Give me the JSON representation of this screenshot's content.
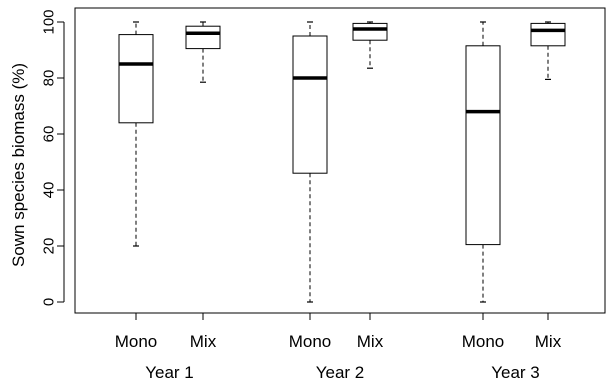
{
  "chart_data": {
    "type": "box",
    "title": "",
    "xlabel": "",
    "ylabel": "Sown species biomass (%)",
    "ylim": [
      0,
      100
    ],
    "yticks": [
      0,
      20,
      40,
      60,
      80,
      100
    ],
    "grid": false,
    "legend": "none",
    "groups": [
      {
        "label": "Year 1",
        "boxes": [
          {
            "category": "Mono",
            "min": 20,
            "q1": 64,
            "median": 85,
            "q3": 95.5,
            "max": 100
          },
          {
            "category": "Mix",
            "min": 78.5,
            "q1": 90.5,
            "median": 96,
            "q3": 98.5,
            "max": 100
          }
        ]
      },
      {
        "label": "Year 2",
        "boxes": [
          {
            "category": "Mono",
            "min": 0,
            "q1": 46,
            "median": 80,
            "q3": 95,
            "max": 100
          },
          {
            "category": "Mix",
            "min": 83.5,
            "q1": 93.5,
            "median": 97.5,
            "q3": 99.5,
            "max": 100
          }
        ]
      },
      {
        "label": "Year 3",
        "boxes": [
          {
            "category": "Mono",
            "min": 0,
            "q1": 20.5,
            "median": 68,
            "q3": 91.5,
            "max": 100
          },
          {
            "category": "Mix",
            "min": 79.5,
            "q1": 91.5,
            "median": 97,
            "q3": 99.5,
            "max": 100
          }
        ]
      }
    ]
  }
}
